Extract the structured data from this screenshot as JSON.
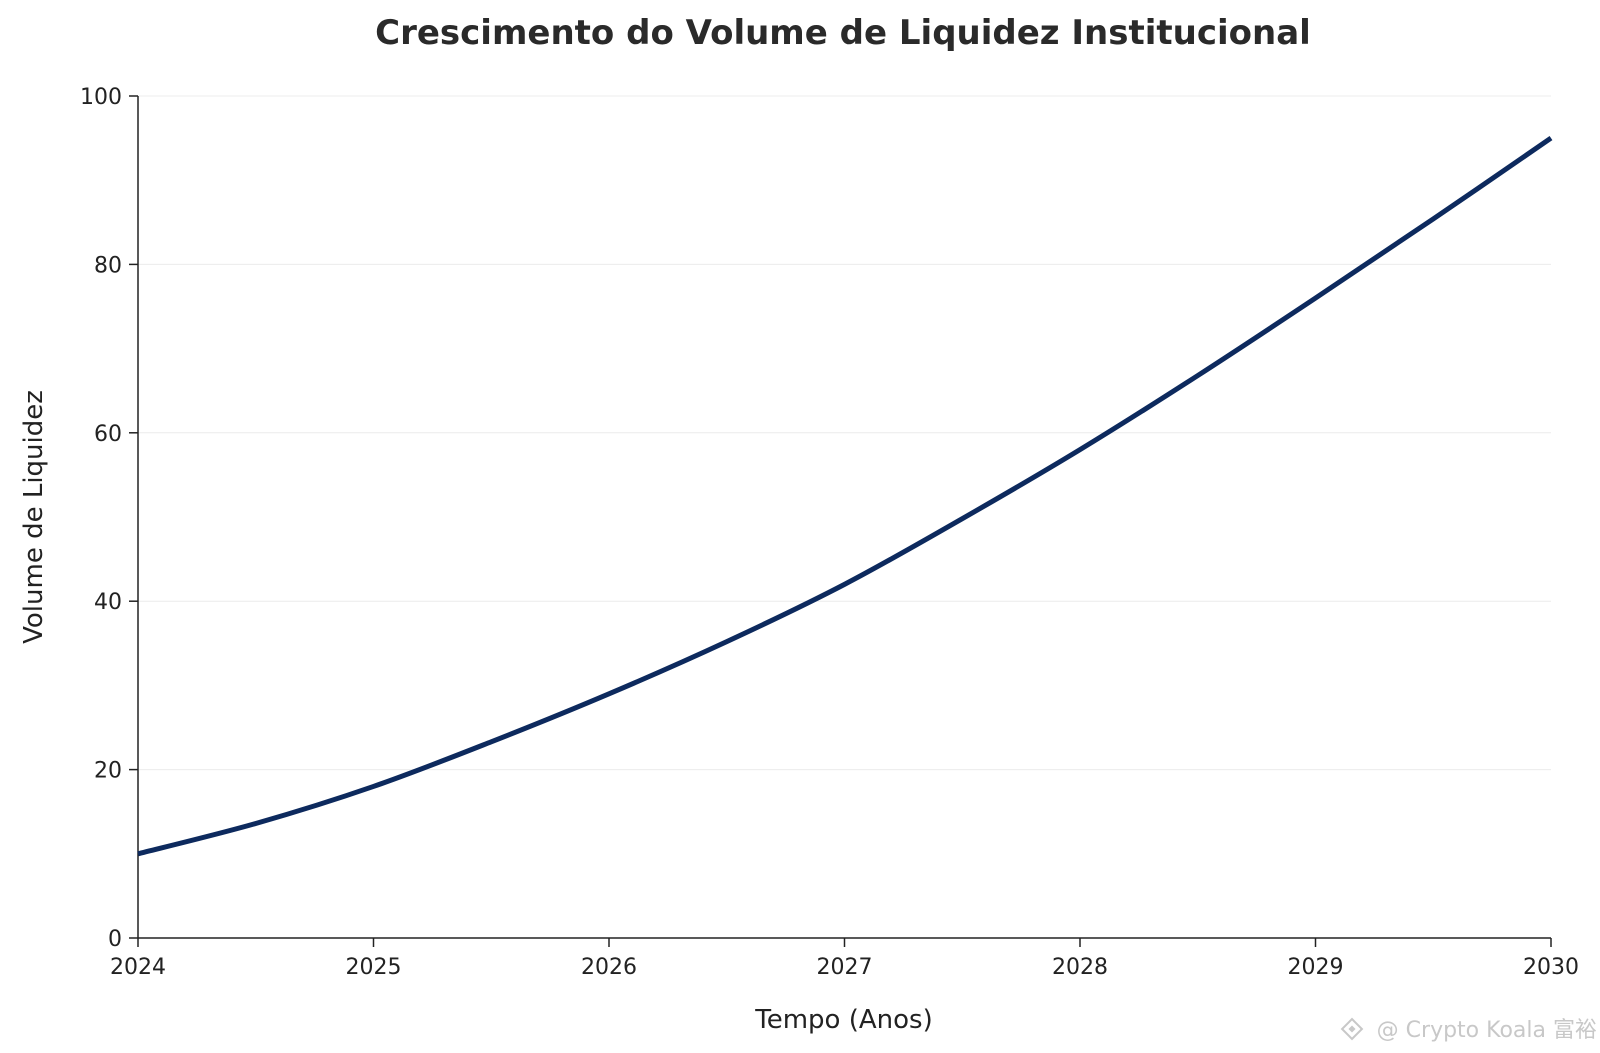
{
  "chart_data": {
    "type": "line",
    "title": "Crescimento do Volume de Liquidez Institucional",
    "xlabel": "Tempo (Anos)",
    "ylabel": "Volume de Liquidez",
    "xlim": [
      2024,
      2030
    ],
    "ylim": [
      0,
      100
    ],
    "x_ticks": [
      "2024",
      "2025",
      "2026",
      "2027",
      "2028",
      "2029",
      "2030"
    ],
    "y_ticks": [
      "0",
      "20",
      "40",
      "60",
      "80",
      "100"
    ],
    "grid": "horizontal",
    "series": [
      {
        "color": "#0d2a5e",
        "x": [
          2024,
          2024.5,
          2025,
          2025.5,
          2026,
          2026.5,
          2027,
          2027.5,
          2028,
          2028.5,
          2029,
          2029.5,
          2030
        ],
        "y": [
          10,
          13.6,
          18,
          23.3,
          29,
          35.2,
          42,
          49.8,
          58,
          66.8,
          76,
          85.4,
          95
        ]
      }
    ]
  },
  "watermark": {
    "text": "@ Crypto Koala 富裕"
  }
}
